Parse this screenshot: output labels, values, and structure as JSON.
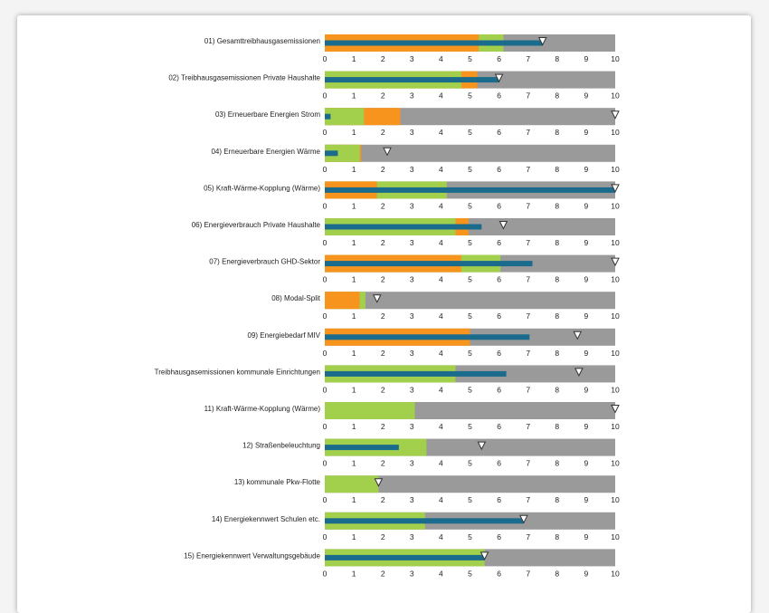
{
  "chart_data": {
    "type": "bar",
    "xlim": [
      0,
      10
    ],
    "ticks": [
      0,
      1,
      2,
      3,
      4,
      5,
      6,
      7,
      8,
      9,
      10
    ],
    "colors": {
      "background": "#9a9a9a",
      "green": "#a3d04c",
      "orange": "#f7941d",
      "actual": "#1b6b8c",
      "marker": "#ffffff"
    },
    "rows": [
      {
        "label": "01) Gesamttreibhausgasemissionen",
        "green": 6.15,
        "orange": 5.3,
        "actual": 7.5,
        "marker": 7.5
      },
      {
        "label": "02) Treibhausgasemissionen Private Haushalte",
        "green": 4.7,
        "orange": 5.25,
        "actual": 6.0,
        "marker": 6.0
      },
      {
        "label": "03) Erneuerbare Energien Strom",
        "green": 1.35,
        "orange": 2.6,
        "actual": 0.2,
        "marker": 10.0
      },
      {
        "label": "04) Erneuerbare Energien Wärme",
        "green": 1.2,
        "orange": 1.25,
        "actual": 0.45,
        "marker": 2.15
      },
      {
        "label": "05) Kraft-Wärme-Kopplung (Wärme)",
        "green": 4.2,
        "orange": 1.8,
        "actual": 10.0,
        "marker": 10.0
      },
      {
        "label": "06) Energieverbrauch Private Haushalte",
        "green": 4.5,
        "orange": 4.95,
        "actual": 5.4,
        "marker": 6.15
      },
      {
        "label": "07) Energieverbrauch GHD-Sektor",
        "green": 6.05,
        "orange": 4.7,
        "actual": 7.15,
        "marker": 10.0
      },
      {
        "label": "08) Modal-Split",
        "green": 1.4,
        "orange": 1.2,
        "actual": 0,
        "marker": 1.8
      },
      {
        "label": "09) Energiebedarf MIV",
        "green": 0,
        "orange": 5.0,
        "actual": 7.05,
        "marker": 8.7
      },
      {
        "label": "Treibhausgasemissionen kommunale Einrichtungen",
        "green": 4.5,
        "orange": 0,
        "actual": 6.25,
        "marker": 8.75
      },
      {
        "label": "11) Kraft-Wärme-Kopplung (Wärme)",
        "green": 3.1,
        "orange": 0,
        "actual": 0,
        "marker": 10.0
      },
      {
        "label": "12) Straßenbeleuchtung",
        "green": 3.5,
        "orange": 0,
        "actual": 2.55,
        "marker": 5.4
      },
      {
        "label": "13) kommunale Pkw-Flotte",
        "green": 1.85,
        "orange": 0,
        "actual": 0,
        "marker": 1.85
      },
      {
        "label": "14) Energiekennwert Schulen etc.",
        "green": 3.45,
        "orange": 0,
        "actual": 6.85,
        "marker": 6.85
      },
      {
        "label": "15) Energiekennwert Verwaltungsgebäude",
        "green": 5.5,
        "orange": 0,
        "actual": 5.5,
        "marker": 5.5
      }
    ]
  }
}
